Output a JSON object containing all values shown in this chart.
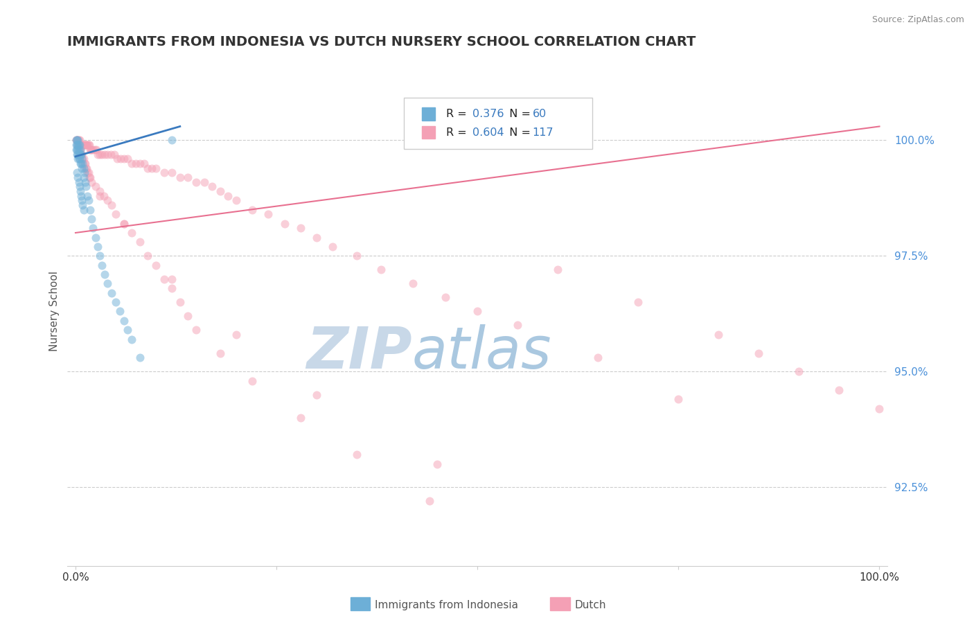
{
  "title": "IMMIGRANTS FROM INDONESIA VS DUTCH NURSERY SCHOOL CORRELATION CHART",
  "source": "Source: ZipAtlas.com",
  "ylabel": "Nursery School",
  "legend_entries": [
    "Immigrants from Indonesia",
    "Dutch"
  ],
  "legend_colors": [
    "#6dafd7",
    "#f4a0b5"
  ],
  "R_blue": "0.376",
  "N_blue": "60",
  "R_pink": "0.604",
  "N_pink": "117",
  "xlim": [
    -0.01,
    1.01
  ],
  "ylim": [
    0.908,
    1.018
  ],
  "yticks": [
    0.925,
    0.95,
    0.975,
    1.0
  ],
  "ytick_labels": [
    "92.5%",
    "95.0%",
    "97.5%",
    "100.0%"
  ],
  "xticks": [
    0.0,
    0.25,
    0.5,
    0.75,
    1.0
  ],
  "xtick_labels": [
    "0.0%",
    "",
    "",
    "",
    "100.0%"
  ],
  "title_fontsize": 14,
  "axis_fontsize": 11,
  "watermark_zip": "ZIP",
  "watermark_atlas": "atlas",
  "blue_scatter_x": [
    0.001,
    0.001,
    0.001,
    0.002,
    0.002,
    0.002,
    0.002,
    0.003,
    0.003,
    0.003,
    0.003,
    0.003,
    0.004,
    0.004,
    0.004,
    0.004,
    0.005,
    0.005,
    0.005,
    0.006,
    0.006,
    0.006,
    0.007,
    0.007,
    0.008,
    0.008,
    0.009,
    0.01,
    0.01,
    0.011,
    0.012,
    0.013,
    0.015,
    0.016,
    0.018,
    0.02,
    0.022,
    0.025,
    0.028,
    0.03,
    0.033,
    0.036,
    0.04,
    0.045,
    0.05,
    0.055,
    0.06,
    0.065,
    0.07,
    0.08,
    0.002,
    0.003,
    0.004,
    0.005,
    0.006,
    0.007,
    0.008,
    0.009,
    0.01,
    0.12
  ],
  "blue_scatter_y": [
    1.0,
    0.999,
    0.998,
    1.0,
    0.999,
    0.998,
    0.997,
    1.0,
    0.999,
    0.998,
    0.997,
    0.996,
    0.999,
    0.998,
    0.997,
    0.996,
    0.999,
    0.997,
    0.996,
    0.998,
    0.997,
    0.995,
    0.997,
    0.995,
    0.996,
    0.994,
    0.995,
    0.994,
    0.992,
    0.993,
    0.991,
    0.99,
    0.988,
    0.987,
    0.985,
    0.983,
    0.981,
    0.979,
    0.977,
    0.975,
    0.973,
    0.971,
    0.969,
    0.967,
    0.965,
    0.963,
    0.961,
    0.959,
    0.957,
    0.953,
    0.993,
    0.992,
    0.991,
    0.99,
    0.989,
    0.988,
    0.987,
    0.986,
    0.985,
    1.0
  ],
  "pink_scatter_x": [
    0.001,
    0.002,
    0.003,
    0.004,
    0.005,
    0.006,
    0.007,
    0.008,
    0.009,
    0.01,
    0.011,
    0.012,
    0.013,
    0.014,
    0.015,
    0.016,
    0.017,
    0.018,
    0.019,
    0.02,
    0.022,
    0.024,
    0.026,
    0.028,
    0.03,
    0.033,
    0.036,
    0.04,
    0.044,
    0.048,
    0.052,
    0.056,
    0.06,
    0.065,
    0.07,
    0.075,
    0.08,
    0.085,
    0.09,
    0.095,
    0.1,
    0.11,
    0.12,
    0.13,
    0.14,
    0.15,
    0.16,
    0.17,
    0.18,
    0.19,
    0.2,
    0.22,
    0.24,
    0.26,
    0.28,
    0.3,
    0.32,
    0.35,
    0.38,
    0.42,
    0.46,
    0.5,
    0.55,
    0.002,
    0.003,
    0.004,
    0.005,
    0.006,
    0.007,
    0.008,
    0.009,
    0.01,
    0.011,
    0.012,
    0.013,
    0.014,
    0.015,
    0.016,
    0.017,
    0.018,
    0.02,
    0.025,
    0.03,
    0.035,
    0.04,
    0.045,
    0.05,
    0.06,
    0.07,
    0.08,
    0.09,
    0.1,
    0.11,
    0.12,
    0.13,
    0.14,
    0.15,
    0.18,
    0.22,
    0.28,
    0.35,
    0.44,
    0.6,
    0.7,
    0.8,
    0.85,
    0.9,
    0.95,
    1.0,
    0.75,
    0.65,
    0.03,
    0.06,
    0.12,
    0.2,
    0.3,
    0.45
  ],
  "pink_scatter_y": [
    1.0,
    1.0,
    1.0,
    1.0,
    1.0,
    0.999,
    0.999,
    0.999,
    0.999,
    0.999,
    0.999,
    0.999,
    0.999,
    0.999,
    0.999,
    0.999,
    0.999,
    0.998,
    0.998,
    0.998,
    0.998,
    0.998,
    0.998,
    0.997,
    0.997,
    0.997,
    0.997,
    0.997,
    0.997,
    0.997,
    0.996,
    0.996,
    0.996,
    0.996,
    0.995,
    0.995,
    0.995,
    0.995,
    0.994,
    0.994,
    0.994,
    0.993,
    0.993,
    0.992,
    0.992,
    0.991,
    0.991,
    0.99,
    0.989,
    0.988,
    0.987,
    0.985,
    0.984,
    0.982,
    0.981,
    0.979,
    0.977,
    0.975,
    0.972,
    0.969,
    0.966,
    0.963,
    0.96,
    1.0,
    0.999,
    0.999,
    0.998,
    0.998,
    0.997,
    0.997,
    0.996,
    0.996,
    0.995,
    0.995,
    0.994,
    0.994,
    0.993,
    0.993,
    0.992,
    0.992,
    0.991,
    0.99,
    0.989,
    0.988,
    0.987,
    0.986,
    0.984,
    0.982,
    0.98,
    0.978,
    0.975,
    0.973,
    0.97,
    0.968,
    0.965,
    0.962,
    0.959,
    0.954,
    0.948,
    0.94,
    0.932,
    0.922,
    0.972,
    0.965,
    0.958,
    0.954,
    0.95,
    0.946,
    0.942,
    0.944,
    0.953,
    0.988,
    0.982,
    0.97,
    0.958,
    0.945,
    0.93
  ],
  "blue_line_x": [
    0.0,
    0.13
  ],
  "blue_line_y": [
    0.9965,
    1.003
  ],
  "pink_line_x": [
    0.0,
    1.0
  ],
  "pink_line_y": [
    0.98,
    1.003
  ],
  "background_color": "#ffffff",
  "scatter_alpha": 0.5,
  "scatter_size": 75,
  "grid_color": "#cccccc",
  "title_color": "#333333",
  "right_tick_color": "#4a90d9"
}
